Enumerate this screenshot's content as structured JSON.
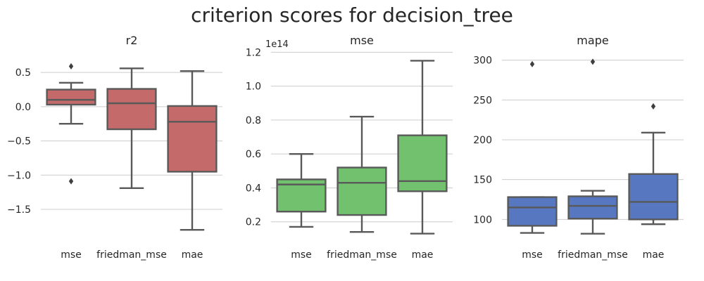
{
  "figure": {
    "title": "criterion scores for decision_tree"
  },
  "colors": {
    "r2": "#c46a6a",
    "mse": "#72c16f",
    "mape": "#5778c1",
    "line": "#595959",
    "grid": "#cccccc"
  },
  "chart_data": [
    {
      "type": "box",
      "title": "r2",
      "categories": [
        "mse",
        "friedman_mse",
        "mae"
      ],
      "ylim": [
        -1.88,
        0.82
      ],
      "yticks": [
        -1.5,
        -1.0,
        -0.5,
        0.0,
        0.5
      ],
      "ytick_labels": [
        "−1.5",
        "−1.0",
        "−0.5",
        "0.0",
        "0.5"
      ],
      "offset_label": "",
      "color_key": "r2",
      "boxes": [
        {
          "q1": 0.03,
          "median": 0.1,
          "q3": 0.25,
          "whislo": -0.25,
          "whishi": 0.35,
          "fliers": [
            0.59,
            -1.09
          ]
        },
        {
          "q1": -0.33,
          "median": 0.05,
          "q3": 0.26,
          "whislo": -1.19,
          "whishi": 0.56,
          "fliers": []
        },
        {
          "q1": -0.95,
          "median": -0.22,
          "q3": 0.01,
          "whislo": -1.8,
          "whishi": 0.52,
          "fliers": []
        }
      ]
    },
    {
      "type": "box",
      "title": "mse",
      "categories": [
        "mse",
        "friedman_mse",
        "mae"
      ],
      "ylim": [
        0.12,
        1.21
      ],
      "yticks": [
        0.2,
        0.4,
        0.6,
        0.8,
        1.0,
        1.2
      ],
      "ytick_labels": [
        "0.2",
        "0.4",
        "0.6",
        "0.8",
        "1.0",
        "1.2"
      ],
      "offset_label": "1e14",
      "color_key": "mse",
      "boxes": [
        {
          "q1": 0.26,
          "median": 0.42,
          "q3": 0.45,
          "whislo": 0.17,
          "whishi": 0.6,
          "fliers": []
        },
        {
          "q1": 0.24,
          "median": 0.43,
          "q3": 0.52,
          "whislo": 0.14,
          "whishi": 0.82,
          "fliers": []
        },
        {
          "q1": 0.38,
          "median": 0.44,
          "q3": 0.71,
          "whislo": 0.13,
          "whishi": 1.15,
          "fliers": []
        }
      ]
    },
    {
      "type": "box",
      "title": "mape",
      "categories": [
        "mse",
        "friedman_mse",
        "mae"
      ],
      "ylim": [
        80,
        312
      ],
      "yticks": [
        100,
        150,
        200,
        250,
        300
      ],
      "ytick_labels": [
        "100",
        "150",
        "200",
        "250",
        "300"
      ],
      "offset_label": "",
      "color_key": "mape",
      "boxes": [
        {
          "q1": 92,
          "median": 115,
          "q3": 128,
          "whislo": 83,
          "whishi": 128,
          "fliers": [
            295
          ]
        },
        {
          "q1": 101,
          "median": 117,
          "q3": 129,
          "whislo": 82,
          "whishi": 136,
          "fliers": [
            298
          ]
        },
        {
          "q1": 100,
          "median": 122,
          "q3": 157,
          "whislo": 94,
          "whishi": 209,
          "fliers": [
            242
          ]
        }
      ]
    }
  ]
}
